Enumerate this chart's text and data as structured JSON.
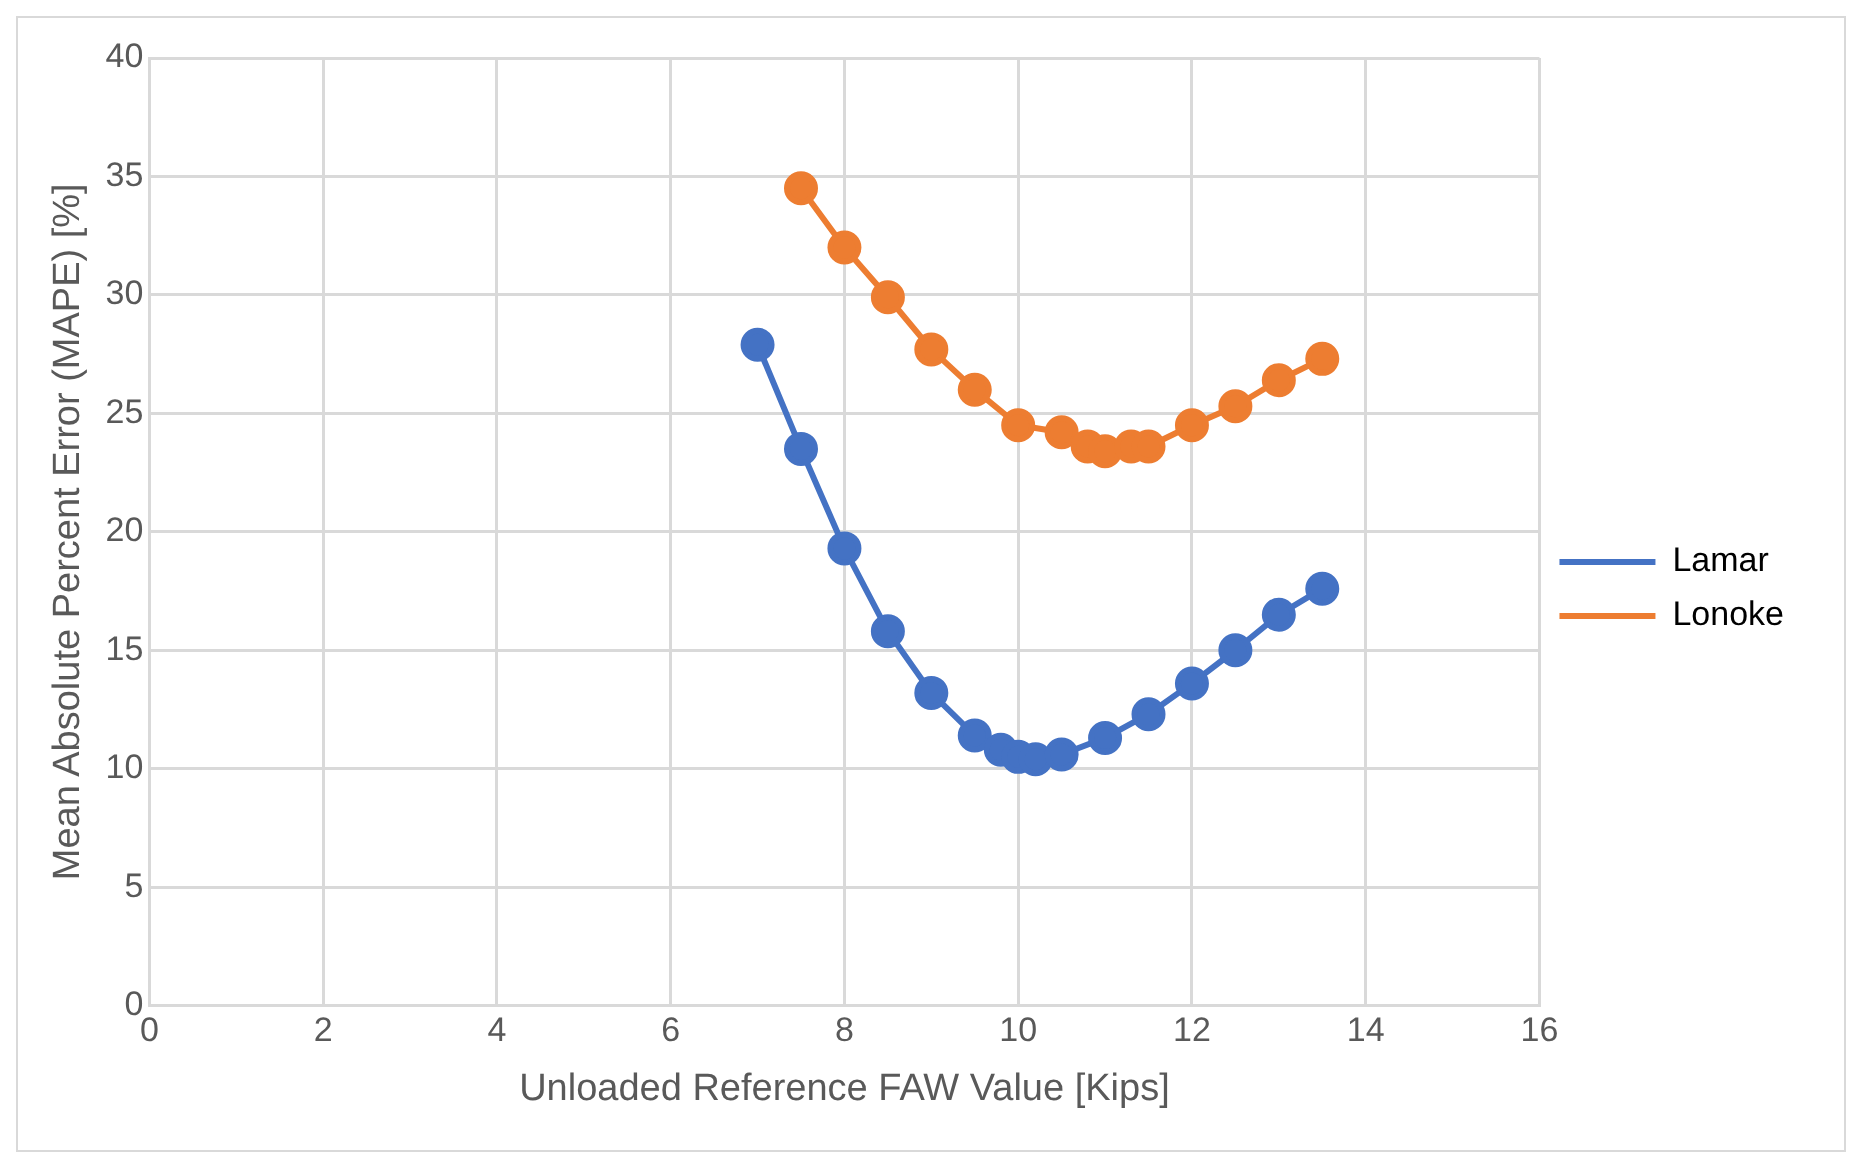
{
  "chart_data": {
    "type": "line",
    "xlabel": "Unloaded Reference FAW Value [Kips]",
    "ylabel": "Mean Absolute Percent Error (MAPE) [%]",
    "xlim": [
      0,
      16
    ],
    "xticks": [
      0,
      2,
      4,
      6,
      8,
      10,
      12,
      14,
      16
    ],
    "ylim": [
      0,
      40
    ],
    "yticks": [
      0,
      5,
      10,
      15,
      20,
      25,
      30,
      35,
      40
    ],
    "grid": true,
    "legend": "right",
    "marker": "circle",
    "line_style": "solid",
    "series": [
      {
        "name": "Lamar",
        "color": "#4472c4",
        "x": [
          7,
          7.5,
          8,
          8.5,
          9,
          9.5,
          9.8,
          10,
          10.2,
          10.5,
          11,
          11.5,
          12,
          12.5,
          13,
          13.5
        ],
        "values": [
          27.9,
          23.5,
          19.3,
          15.8,
          13.2,
          11.4,
          10.8,
          10.5,
          10.4,
          10.6,
          11.3,
          12.3,
          13.6,
          15.0,
          16.5,
          17.6
        ]
      },
      {
        "name": "Lonoke",
        "color": "#ed7d31",
        "x": [
          7.5,
          8,
          8.5,
          9,
          9.5,
          10,
          10.5,
          10.8,
          11,
          11.3,
          11.5,
          12,
          12.5,
          13,
          13.5
        ],
        "values": [
          34.5,
          32,
          29.9,
          27.7,
          26,
          24.5,
          24.2,
          23.6,
          23.4,
          23.6,
          23.6,
          24.5,
          25.3,
          26.4,
          27.3
        ]
      }
    ]
  }
}
